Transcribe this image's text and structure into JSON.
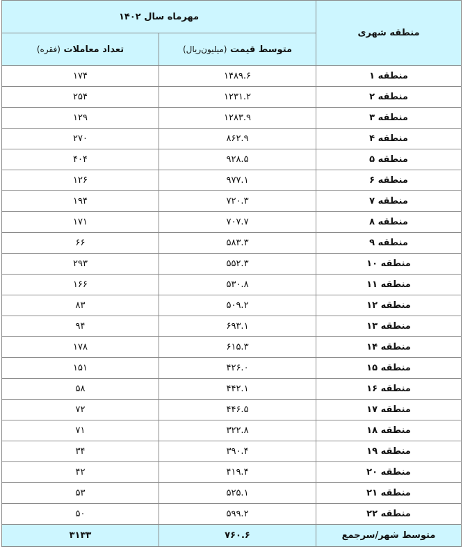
{
  "header": {
    "region_label": "منطقه شهری",
    "period_label": "مهرماه سال ۱۴۰۲",
    "price_label": "متوسط قیمت",
    "price_unit": "(میلیون‌ریال)",
    "count_label": "تعداد معاملات",
    "count_unit": "(فقره)"
  },
  "rows": [
    {
      "region": "منطقه ۱",
      "price": "۱۴۸۹.۶",
      "count": "۱۷۴"
    },
    {
      "region": "منطقه ۲",
      "price": "۱۲۳۱.۲",
      "count": "۲۵۴"
    },
    {
      "region": "منطقه ۳",
      "price": "۱۲۸۳.۹",
      "count": "۱۲۹"
    },
    {
      "region": "منطقه ۴",
      "price": "۸۶۲.۹",
      "count": "۲۷۰"
    },
    {
      "region": "منطقه ۵",
      "price": "۹۲۸.۵",
      "count": "۴۰۴"
    },
    {
      "region": "منطقه ۶",
      "price": "۹۷۷.۱",
      "count": "۱۲۶"
    },
    {
      "region": "منطقه ۷",
      "price": "۷۲۰.۳",
      "count": "۱۹۴"
    },
    {
      "region": "منطقه ۸",
      "price": "۷۰۷.۷",
      "count": "۱۷۱"
    },
    {
      "region": "منطقه ۹",
      "price": "۵۸۳.۳",
      "count": "۶۶"
    },
    {
      "region": "منطقه ۱۰",
      "price": "۵۵۲.۳",
      "count": "۲۹۳"
    },
    {
      "region": "منطقه ۱۱",
      "price": "۵۳۰.۸",
      "count": "۱۶۶"
    },
    {
      "region": "منطقه ۱۲",
      "price": "۵۰۹.۲",
      "count": "۸۳"
    },
    {
      "region": "منطقه ۱۳",
      "price": "۶۹۳.۱",
      "count": "۹۴"
    },
    {
      "region": "منطقه ۱۴",
      "price": "۶۱۵.۳",
      "count": "۱۷۸"
    },
    {
      "region": "منطقه ۱۵",
      "price": "۴۲۶.۰",
      "count": "۱۵۱"
    },
    {
      "region": "منطقه ۱۶",
      "price": "۴۴۲.۱",
      "count": "۵۸"
    },
    {
      "region": "منطقه ۱۷",
      "price": "۴۴۶.۵",
      "count": "۷۲"
    },
    {
      "region": "منطقه ۱۸",
      "price": "۳۲۲.۸",
      "count": "۷۱"
    },
    {
      "region": "منطقه ۱۹",
      "price": "۳۹۰.۴",
      "count": "۳۴"
    },
    {
      "region": "منطقه ۲۰",
      "price": "۴۱۹.۴",
      "count": "۴۲"
    },
    {
      "region": "منطقه ۲۱",
      "price": "۵۲۵.۱",
      "count": "۵۳"
    },
    {
      "region": "منطقه ۲۲",
      "price": "۵۹۹.۲",
      "count": "۵۰"
    }
  ],
  "footer": {
    "region": "متوسط شهر/سرجمع",
    "price": "۷۶۰.۶",
    "count": "۳۱۳۳"
  },
  "colors": {
    "header_bg": "#cdf6ff",
    "border": "#8a8a8a"
  }
}
